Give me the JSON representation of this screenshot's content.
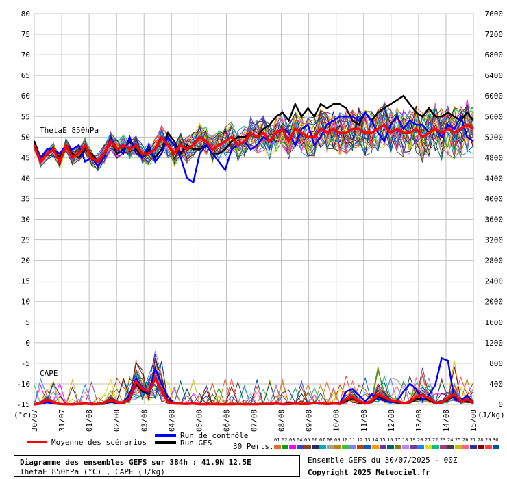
{
  "header": {},
  "chart_data": {
    "type": "line",
    "x": [
      "30/07",
      "31/07",
      "01/08",
      "02/08",
      "03/08",
      "04/08",
      "05/08",
      "06/08",
      "07/08",
      "08/08",
      "09/08",
      "10/08",
      "11/08",
      "12/08",
      "13/08",
      "14/08",
      "15/08"
    ],
    "ylim": [
      -15,
      80
    ],
    "yticks": [
      -15,
      -10,
      -5,
      0,
      5,
      10,
      15,
      20,
      25,
      30,
      35,
      40,
      45,
      50,
      55,
      60,
      65,
      70,
      75,
      80
    ],
    "y2ticks": [
      0,
      400,
      800,
      1200,
      1600,
      2000,
      2400,
      2800,
      3200,
      3600,
      4000,
      4400,
      4800,
      5200,
      5600,
      6000,
      6400,
      6800,
      7200,
      7600
    ],
    "y2lim": [
      0,
      7600
    ],
    "ylabel": "(°c)",
    "y2label": "(J/kg)",
    "grid": true,
    "annotations": [
      "ThetaE 850hPa",
      "CAPE"
    ],
    "series": [
      {
        "name": "Moyenne des scénarios",
        "color": "#ff0000",
        "thetae": [
          48,
          44,
          46,
          47,
          44,
          48,
          45,
          46,
          48,
          45,
          44,
          46,
          49,
          47,
          48,
          47,
          48,
          46,
          46,
          47,
          50,
          48,
          46,
          48,
          47,
          48,
          50,
          49,
          47,
          48,
          49,
          50,
          48,
          49,
          51,
          50,
          51,
          49,
          51,
          52,
          49,
          52,
          51,
          50,
          50,
          52,
          51,
          52,
          51,
          51,
          52,
          52,
          51,
          51,
          52,
          53,
          51,
          52,
          51,
          51,
          52,
          50,
          51,
          52,
          51,
          52,
          51,
          52,
          53,
          52
        ],
        "cape": [
          0,
          20,
          90,
          40,
          10,
          5,
          5,
          10,
          20,
          5,
          10,
          30,
          80,
          40,
          30,
          120,
          450,
          300,
          250,
          500,
          280,
          50,
          20,
          15,
          10,
          20,
          5,
          5,
          10,
          5,
          5,
          5,
          10,
          5,
          5,
          5,
          10,
          10,
          20,
          5,
          10,
          20,
          10,
          10,
          30,
          20,
          10,
          20,
          10,
          100,
          150,
          60,
          20,
          60,
          200,
          140,
          80,
          60,
          20,
          40,
          150,
          180,
          120,
          30,
          40,
          120,
          200,
          60,
          100,
          30
        ]
      },
      {
        "name": "Run de contrôle",
        "color": "#0000ff",
        "thetae": [
          48,
          45,
          47,
          47,
          46,
          48,
          47,
          48,
          44,
          45,
          43,
          45,
          50,
          47,
          46,
          50,
          46,
          45,
          48,
          44,
          46,
          50,
          48,
          45,
          40,
          39,
          46,
          48,
          46,
          44,
          42,
          47,
          48,
          49,
          47,
          48,
          50,
          49,
          51,
          52,
          51,
          48,
          52,
          53,
          48,
          50,
          53,
          54,
          55,
          55,
          55,
          54,
          56,
          54,
          51,
          49,
          53,
          55,
          52,
          54,
          53,
          53,
          51,
          52,
          50,
          53,
          52,
          55,
          50,
          49
        ],
        "cape": [
          0,
          10,
          40,
          20,
          10,
          5,
          0,
          5,
          10,
          20,
          5,
          20,
          60,
          30,
          20,
          200,
          500,
          330,
          200,
          700,
          400,
          150,
          20,
          20,
          10,
          20,
          5,
          5,
          10,
          5,
          5,
          10,
          5,
          5,
          5,
          10,
          5,
          5,
          10,
          10,
          30,
          20,
          10,
          15,
          40,
          20,
          10,
          30,
          20,
          250,
          300,
          180,
          60,
          200,
          100,
          80,
          40,
          60,
          250,
          400,
          300,
          80,
          180,
          380,
          900,
          850,
          100,
          60,
          180,
          40
        ]
      },
      {
        "name": "Run GFS",
        "color": "#000000",
        "thetae": [
          49,
          45,
          46,
          47,
          45,
          48,
          46,
          45,
          47,
          46,
          44,
          46,
          49,
          46,
          47,
          49,
          47,
          45,
          47,
          45,
          47,
          51,
          49,
          46,
          48,
          47,
          47,
          48,
          46,
          46,
          47,
          49,
          50,
          50,
          51,
          50,
          52,
          53,
          55,
          56,
          54,
          58,
          55,
          57,
          55,
          58,
          57,
          58,
          58,
          57,
          54,
          53,
          56,
          54,
          56,
          57,
          58,
          59,
          60,
          58,
          56,
          55,
          57,
          55,
          55,
          56,
          55,
          54,
          56,
          54
        ],
        "cape": [
          0,
          10,
          50,
          20,
          5,
          5,
          0,
          5,
          10,
          5,
          5,
          10,
          50,
          20,
          20,
          100,
          400,
          250,
          200,
          500,
          300,
          80,
          20,
          10,
          10,
          10,
          5,
          5,
          5,
          5,
          5,
          5,
          5,
          5,
          5,
          5,
          5,
          5,
          10,
          5,
          5,
          10,
          5,
          5,
          20,
          10,
          5,
          10,
          10,
          60,
          120,
          40,
          20,
          40,
          150,
          100,
          60,
          40,
          20,
          30,
          100,
          120,
          80,
          20,
          30,
          100,
          150,
          50,
          80,
          20
        ]
      }
    ],
    "perturbations": {
      "label": "30 Perts.",
      "ids": [
        "01",
        "02",
        "03",
        "04",
        "05",
        "06",
        "07",
        "08",
        "09",
        "10",
        "11",
        "12",
        "13",
        "14",
        "15",
        "16",
        "17",
        "18",
        "19",
        "20",
        "21",
        "22",
        "23",
        "24",
        "25",
        "26",
        "27",
        "28",
        "29",
        "30"
      ],
      "colors": [
        "#e06b2e",
        "#00a000",
        "#ff00ff",
        "#4040c0",
        "#8b4513",
        "#2a2a6a",
        "#00b0b0",
        "#a0a0a0",
        "#b8860b",
        "#40c040",
        "#8080ff",
        "#c04000",
        "#0060c0",
        "#ff9900",
        "#7030a0",
        "#006060",
        "#808000",
        "#c080ff",
        "#6a3d9a",
        "#2080ff",
        "#e0e000",
        "#00c080",
        "#a04080",
        "#404040",
        "#c0c000",
        "#ff6080",
        "#303090",
        "#8b0000",
        "#ff4040",
        "#0050a0"
      ]
    }
  },
  "legend": {
    "mean_label": "Moyenne des scénarios",
    "control_label": "Run de contrôle",
    "gfs_label": "Run GFS",
    "perts_label": "30 Perts."
  },
  "footer": {
    "title": "Diagramme des ensembles GEFS sur 384h : 41.9N 12.5E",
    "subtitle": "ThetaE 850hPa (°C) , CAPE (J/kg)",
    "ensemble": "Ensemble GEFS du 30/07/2025 - 00Z",
    "copyright": "Copyright 2025 Meteociel.fr"
  }
}
